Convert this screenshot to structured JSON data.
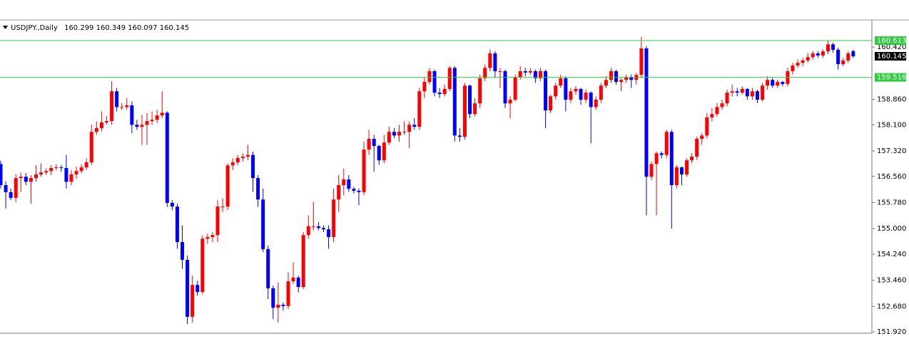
{
  "chart_data": {
    "type": "candlestick",
    "title": "USDJPY.,Daily",
    "open": [
      156.93,
      156.3,
      156.09,
      155.92,
      156.51,
      156.55,
      156.4,
      156.51,
      156.62,
      156.68,
      156.72,
      156.81,
      156.83,
      156.81,
      156.4,
      156.62,
      156.72,
      156.83,
      156.98,
      157.89,
      158.0,
      158.17,
      158.21,
      159.1,
      158.63,
      158.63,
      158.68,
      158.1,
      158.04,
      158.1,
      158.21,
      158.25,
      158.38,
      158.46,
      155.77,
      155.66,
      154.6,
      154.07,
      152.37,
      153.32,
      153.11,
      154.7,
      154.75,
      154.81,
      155.66,
      155.66,
      156.89,
      156.98,
      157.11,
      157.15,
      157.2,
      156.51,
      155.87,
      154.39,
      153.22,
      152.64,
      152.73,
      152.69,
      153.43,
      153.54,
      153.26,
      154.81,
      155.07,
      155.07,
      155.02,
      154.98,
      154.75,
      155.87,
      156.3,
      156.47,
      156.19,
      156.13,
      156.09,
      157.36,
      157.68,
      157.47,
      157.04,
      157.57,
      157.89,
      157.78,
      157.89,
      157.89,
      158.1,
      158.04,
      159.1,
      159.38,
      159.7,
      159.06,
      159.02,
      159.17,
      159.8,
      157.78,
      157.74,
      159.27,
      158.42,
      158.74,
      159.49,
      159.8,
      160.23,
      159.7,
      159.7,
      158.74,
      158.85,
      159.53,
      159.7,
      159.66,
      159.7,
      159.49,
      159.7,
      158.53,
      158.95,
      159.27,
      159.49,
      158.85,
      159.1,
      159.17,
      158.85,
      159.06,
      158.63,
      158.85,
      159.27,
      159.44,
      159.7,
      159.38,
      159.44,
      159.53,
      159.44,
      159.59,
      160.38,
      156.55,
      156.93,
      157.25,
      157.2,
      157.89,
      156.3,
      156.83,
      156.62,
      157.04,
      157.15,
      157.68,
      157.78,
      158.32,
      158.42,
      158.63,
      158.74,
      159.06,
      159.1,
      159.06,
      159.17,
      158.95,
      159.1,
      158.85,
      159.27,
      159.44,
      159.27,
      159.38,
      159.32,
      159.7,
      159.87,
      159.95,
      160.02,
      160.12,
      160.23,
      160.17,
      160.29,
      160.5,
      160.34,
      159.91,
      160.02,
      160.299
    ],
    "high": [
      157.03,
      156.42,
      156.2,
      156.62,
      156.68,
      156.66,
      156.6,
      156.9,
      156.95,
      156.8,
      156.9,
      156.92,
      156.9,
      157.2,
      156.75,
      156.85,
      156.92,
      157.1,
      158.1,
      158.2,
      158.5,
      158.35,
      159.4,
      159.2,
      158.75,
      158.9,
      158.8,
      158.25,
      158.4,
      158.45,
      158.5,
      158.55,
      159.1,
      158.5,
      155.85,
      155.75,
      155.1,
      154.2,
      153.6,
      153.45,
      154.8,
      154.85,
      154.9,
      155.85,
      155.9,
      156.95,
      157.1,
      157.2,
      157.25,
      157.5,
      157.3,
      156.6,
      156.2,
      154.5,
      153.3,
      153.4,
      152.8,
      153.7,
      154.0,
      153.6,
      154.9,
      155.4,
      155.8,
      155.2,
      155.1,
      155.1,
      156.2,
      156.6,
      156.8,
      156.6,
      156.25,
      156.2,
      157.6,
      157.95,
      157.8,
      157.5,
      157.8,
      158.05,
      158.0,
      158.1,
      158.2,
      158.2,
      158.3,
      159.2,
      159.5,
      159.8,
      159.75,
      159.2,
      159.3,
      159.85,
      159.85,
      158.0,
      159.35,
      159.3,
      158.9,
      159.6,
      159.9,
      160.35,
      160.3,
      159.8,
      159.75,
      158.95,
      159.6,
      159.85,
      159.8,
      159.8,
      159.75,
      159.8,
      159.75,
      159.0,
      159.35,
      159.6,
      159.55,
      159.2,
      159.25,
      159.2,
      159.15,
      159.1,
      158.95,
      159.35,
      159.55,
      159.8,
      159.75,
      159.5,
      159.6,
      159.6,
      159.65,
      160.72,
      160.45,
      157.0,
      157.3,
      157.3,
      157.95,
      157.95,
      156.9,
      156.85,
      157.1,
      157.25,
      157.75,
      157.85,
      158.45,
      158.6,
      158.75,
      158.85,
      159.15,
      159.3,
      159.2,
      159.25,
      159.2,
      159.2,
      159.15,
      159.35,
      159.55,
      159.5,
      159.45,
      159.4,
      159.8,
      159.95,
      160.05,
      160.1,
      160.25,
      160.3,
      160.3,
      160.35,
      160.62,
      160.55,
      160.4,
      160.1,
      160.3,
      160.349
    ],
    "low": [
      156.2,
      155.6,
      155.85,
      155.8,
      156.1,
      156.3,
      155.75,
      156.4,
      156.55,
      156.6,
      156.6,
      156.75,
      156.7,
      156.2,
      156.3,
      156.5,
      156.65,
      156.75,
      156.9,
      157.8,
      157.9,
      158.1,
      158.1,
      158.5,
      158.55,
      158.55,
      157.85,
      157.95,
      157.5,
      157.5,
      158.1,
      158.15,
      158.3,
      155.65,
      155.55,
      154.4,
      153.8,
      152.15,
      152.2,
      153.0,
      153.05,
      154.55,
      154.6,
      154.6,
      155.5,
      155.55,
      156.75,
      156.9,
      157.0,
      157.05,
      156.1,
      155.65,
      154.3,
      152.9,
      152.3,
      152.2,
      152.55,
      152.6,
      153.35,
      153.1,
      153.2,
      154.7,
      154.95,
      154.95,
      154.9,
      154.4,
      154.6,
      155.5,
      156.0,
      156.1,
      156.05,
      155.7,
      156.0,
      157.2,
      156.7,
      156.9,
      156.95,
      157.5,
      157.7,
      157.6,
      157.8,
      157.4,
      157.95,
      157.95,
      158.9,
      159.3,
      158.95,
      158.9,
      158.95,
      159.1,
      157.6,
      157.6,
      157.65,
      158.3,
      158.35,
      158.6,
      159.4,
      159.7,
      159.5,
      159.2,
      158.6,
      158.3,
      158.8,
      159.45,
      159.55,
      159.6,
      159.35,
      159.4,
      158.0,
      158.45,
      158.85,
      159.2,
      158.5,
      158.75,
      159.0,
      158.7,
      158.75,
      157.55,
      158.55,
      158.75,
      159.2,
      159.35,
      159.3,
      159.1,
      159.35,
      159.2,
      159.3,
      159.5,
      155.4,
      156.45,
      155.4,
      157.1,
      157.1,
      155.0,
      156.2,
      156.3,
      156.55,
      156.95,
      157.05,
      157.5,
      157.7,
      158.2,
      158.35,
      158.55,
      158.65,
      158.95,
      158.95,
      159.0,
      158.85,
      158.85,
      158.75,
      158.8,
      159.15,
      159.2,
      159.2,
      159.25,
      159.25,
      159.6,
      159.8,
      159.85,
      159.95,
      160.05,
      160.1,
      160.1,
      160.2,
      160.25,
      159.75,
      159.85,
      159.95,
      160.097
    ],
    "close": [
      156.3,
      156.09,
      155.92,
      156.51,
      156.55,
      156.4,
      156.51,
      156.62,
      156.68,
      156.72,
      156.81,
      156.83,
      156.81,
      156.4,
      156.62,
      156.72,
      156.83,
      156.98,
      157.89,
      158.0,
      158.17,
      158.21,
      159.1,
      158.63,
      158.63,
      158.68,
      158.1,
      158.04,
      158.1,
      158.21,
      158.25,
      158.38,
      158.46,
      155.77,
      155.66,
      154.6,
      154.07,
      152.37,
      153.32,
      153.11,
      154.7,
      154.75,
      154.81,
      155.66,
      155.66,
      156.89,
      156.98,
      157.11,
      157.15,
      157.2,
      156.51,
      155.87,
      154.39,
      153.22,
      152.64,
      152.73,
      152.69,
      153.43,
      153.54,
      153.26,
      154.81,
      155.07,
      155.07,
      155.02,
      154.98,
      154.75,
      155.87,
      156.3,
      156.47,
      156.19,
      156.13,
      156.09,
      157.36,
      157.68,
      157.47,
      157.04,
      157.57,
      157.89,
      157.78,
      157.89,
      157.89,
      158.1,
      158.04,
      159.1,
      159.38,
      159.7,
      159.06,
      159.02,
      159.17,
      159.8,
      157.78,
      157.74,
      159.27,
      158.42,
      158.74,
      159.49,
      159.8,
      160.23,
      159.7,
      159.7,
      158.74,
      158.85,
      159.53,
      159.7,
      159.66,
      159.7,
      159.49,
      159.7,
      158.53,
      158.95,
      159.27,
      159.49,
      158.85,
      159.1,
      159.17,
      158.85,
      159.06,
      158.63,
      158.85,
      159.27,
      159.44,
      159.7,
      159.38,
      159.44,
      159.53,
      159.44,
      159.59,
      160.38,
      156.55,
      156.93,
      157.25,
      157.2,
      157.89,
      156.3,
      156.83,
      156.62,
      157.04,
      157.15,
      157.68,
      157.78,
      158.32,
      158.42,
      158.63,
      158.74,
      159.06,
      159.1,
      159.06,
      159.17,
      158.95,
      159.1,
      158.85,
      159.27,
      159.44,
      159.27,
      159.38,
      159.32,
      159.7,
      159.87,
      159.95,
      160.02,
      160.12,
      160.23,
      160.17,
      160.29,
      160.5,
      160.34,
      159.91,
      160.02,
      160.23,
      160.145
    ],
    "up_color": "#ff0000",
    "down_color": "#0000ff",
    "ylim": [
      151.88,
      161.23
    ],
    "yticks": [
      {
        "value": 160.42,
        "label": "160.420"
      },
      {
        "value": 158.86,
        "label": "158.860"
      },
      {
        "value": 158.1,
        "label": "158.100"
      },
      {
        "value": 157.32,
        "label": "157.320"
      },
      {
        "value": 156.56,
        "label": "156.560"
      },
      {
        "value": 155.78,
        "label": "155.780"
      },
      {
        "value": 155,
        "label": "155.000"
      },
      {
        "value": 154.24,
        "label": "154.240"
      },
      {
        "value": 153.46,
        "label": "153.460"
      },
      {
        "value": 152.68,
        "label": "152.680"
      },
      {
        "value": 151.92,
        "label": "151.920"
      }
    ],
    "levels": [
      160.613,
      159.516
    ],
    "level_color": "#2ecc40"
  }
}
